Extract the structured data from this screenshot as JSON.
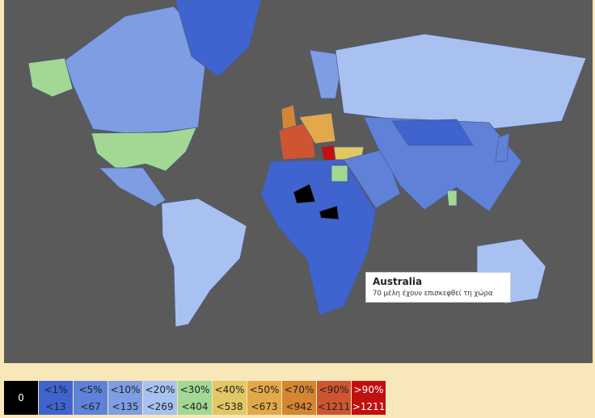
{
  "tooltip": {
    "title": "Australia",
    "text": "70 μέλη έχουν επισκεφθεί τη χώρα"
  },
  "legend": {
    "items": [
      {
        "top": "0",
        "color": "#000000"
      },
      {
        "top": "<1%",
        "bottom": "<13",
        "color": "#3f63cf"
      },
      {
        "top": "<5%",
        "bottom": "<67",
        "color": "#5f82d8"
      },
      {
        "top": "<10%",
        "bottom": "<135",
        "color": "#7f9de2"
      },
      {
        "top": "<20%",
        "bottom": "<269",
        "color": "#a9c1f1"
      },
      {
        "top": "<30%",
        "bottom": "<404",
        "color": "#a2d894"
      },
      {
        "top": "<40%",
        "bottom": "<538",
        "color": "#e2c766"
      },
      {
        "top": "<50%",
        "bottom": "<673",
        "color": "#e2a94a"
      },
      {
        "top": "<70%",
        "bottom": "<942",
        "color": "#d68533"
      },
      {
        "top": "<90%",
        "bottom": "<1211",
        "color": "#cf5530"
      },
      {
        "top": ">90%",
        "bottom": ">1211",
        "color": "#c0100f"
      }
    ]
  }
}
